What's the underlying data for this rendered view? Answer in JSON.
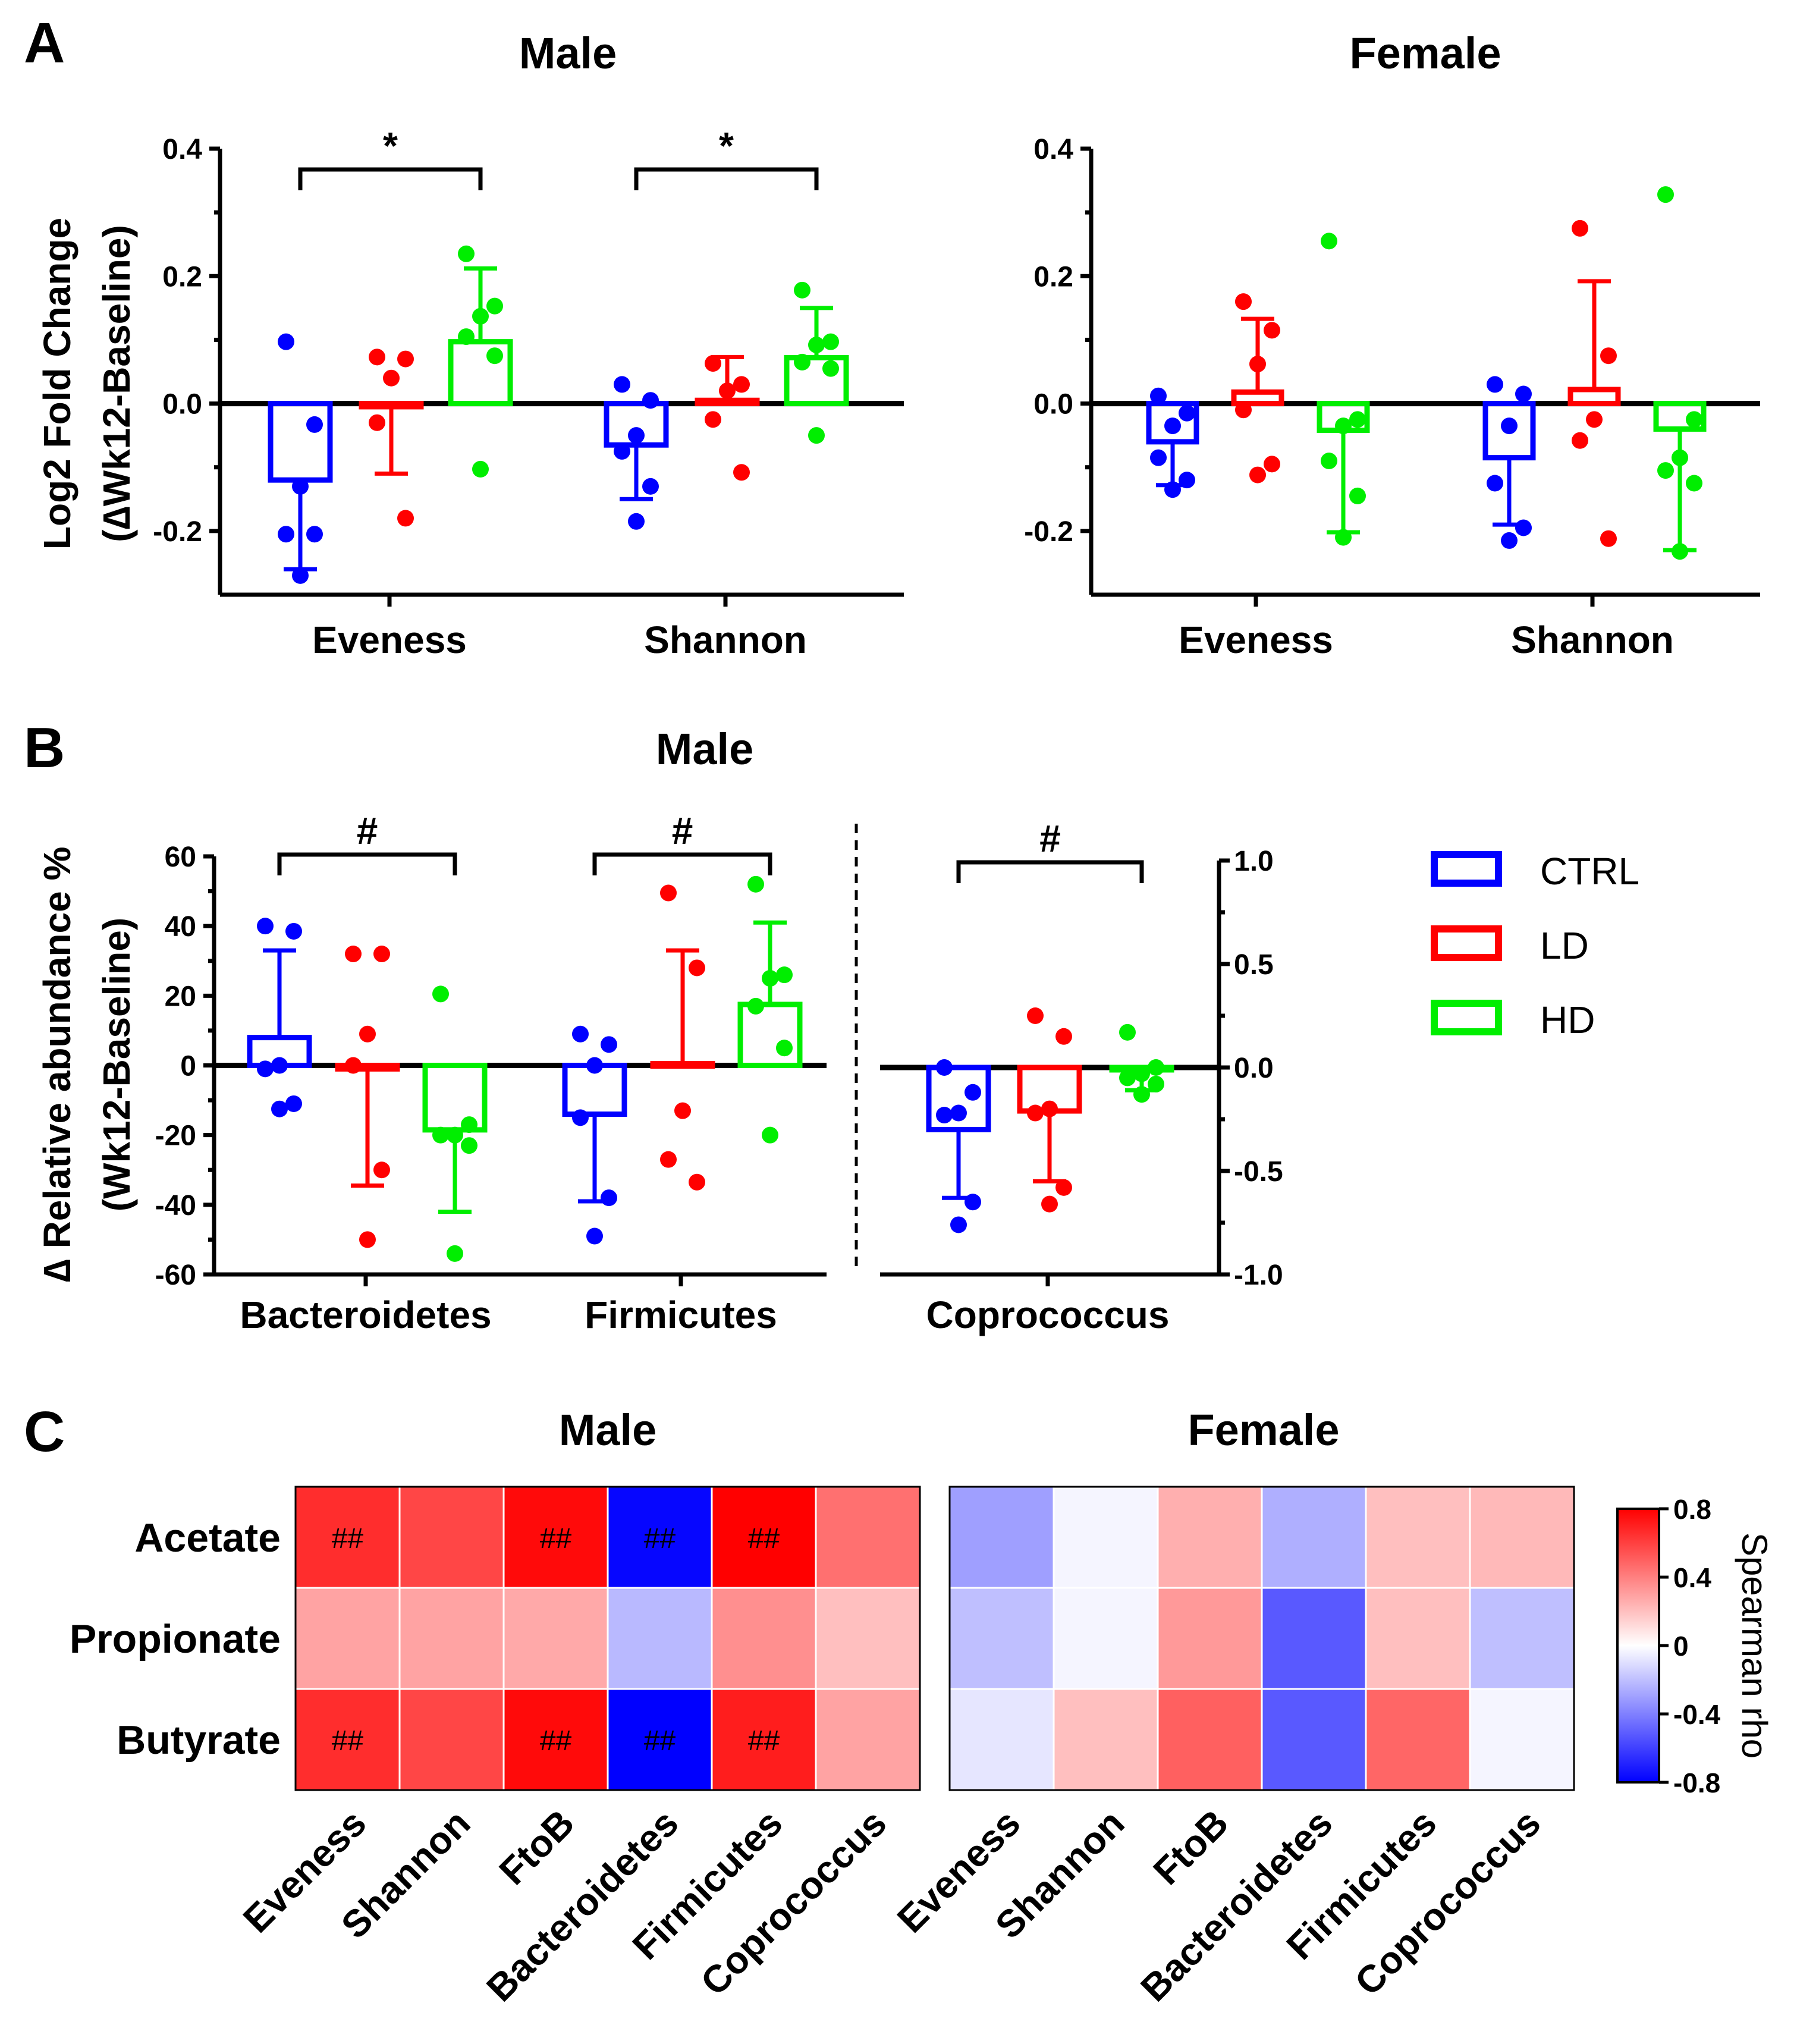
{
  "colors": {
    "CTRL": "#0000ff",
    "LD": "#ff0000",
    "HD": "#00ee00"
  },
  "panel_letters": {
    "a": "A",
    "b": "B",
    "c": "C"
  },
  "legend": {
    "items": [
      "CTRL",
      "LD",
      "HD"
    ]
  },
  "chart_data": [
    {
      "id": "A-male",
      "type": "bar",
      "title": "Male",
      "ylabel_line1": "Log2 Fold Change",
      "ylabel_line2": "(∆Wk12-Baseline)",
      "ylim": [
        -0.3,
        0.4
      ],
      "yticks": [
        0.4,
        0.2,
        0.0,
        -0.2
      ],
      "ytick_labels": [
        "0.4",
        "0.2",
        "0.0",
        "-0.2"
      ],
      "categories": [
        "Eveness",
        "Shannon"
      ],
      "series": [
        {
          "name": "CTRL",
          "means": [
            -0.12,
            -0.065
          ],
          "sd": [
            0.14,
            0.085
          ],
          "points": [
            [
              0.097,
              -0.033,
              -0.13,
              -0.205,
              -0.205,
              -0.27
            ],
            [
              0.03,
              0.005,
              -0.05,
              -0.075,
              -0.13,
              -0.185
            ]
          ]
        },
        {
          "name": "LD",
          "means": [
            -0.005,
            0.005
          ],
          "sd": [
            0.105,
            0.068
          ],
          "points": [
            [
              0.073,
              0.07,
              0.04,
              -0.03,
              -0.18
            ],
            [
              0.063,
              0.03,
              0.02,
              -0.025,
              -0.108
            ]
          ]
        },
        {
          "name": "HD",
          "means": [
            0.097,
            0.072
          ],
          "sd": [
            0.115,
            0.078
          ],
          "points": [
            [
              0.235,
              0.153,
              0.137,
              0.105,
              0.075,
              -0.103
            ],
            [
              0.178,
              0.097,
              0.092,
              0.065,
              0.055,
              -0.05
            ]
          ]
        }
      ],
      "significance": [
        {
          "category": 0,
          "from": "CTRL",
          "to": "HD",
          "label": "*"
        },
        {
          "category": 1,
          "from": "CTRL",
          "to": "HD",
          "label": "*"
        }
      ]
    },
    {
      "id": "A-female",
      "type": "bar",
      "title": "Female",
      "ylim": [
        -0.3,
        0.4
      ],
      "yticks": [
        0.4,
        0.2,
        0.0,
        -0.2
      ],
      "ytick_labels": [
        "0.4",
        "0.2",
        "0.0",
        "-0.2"
      ],
      "categories": [
        "Eveness",
        "Shannon"
      ],
      "series": [
        {
          "name": "CTRL",
          "means": [
            -0.06,
            -0.085
          ],
          "sd": [
            0.068,
            0.105
          ],
          "points": [
            [
              0.012,
              -0.015,
              -0.035,
              -0.085,
              -0.12,
              -0.135
            ],
            [
              0.03,
              0.015,
              -0.035,
              -0.125,
              -0.195,
              -0.215
            ]
          ]
        },
        {
          "name": "LD",
          "means": [
            0.018,
            0.022
          ],
          "sd": [
            0.115,
            0.17
          ],
          "points": [
            [
              0.16,
              0.115,
              0.062,
              -0.01,
              -0.095,
              -0.112
            ],
            [
              0.275,
              0.075,
              -0.025,
              -0.058,
              -0.212
            ]
          ]
        },
        {
          "name": "HD",
          "means": [
            -0.042,
            -0.04
          ],
          "sd": [
            0.16,
            0.19
          ],
          "points": [
            [
              0.255,
              -0.025,
              -0.035,
              -0.09,
              -0.145,
              -0.21
            ],
            [
              0.328,
              -0.025,
              -0.085,
              -0.105,
              -0.125,
              -0.232
            ]
          ]
        }
      ],
      "significance": []
    },
    {
      "id": "B-male-phyla",
      "type": "bar",
      "title": "Male",
      "ylabel_line1": "∆ Relative abundance %",
      "ylabel_line2": "(Wk12-Baseline)",
      "ylim": [
        -60,
        60
      ],
      "yticks": [
        60,
        40,
        20,
        0,
        -20,
        -40,
        -60
      ],
      "ytick_labels": [
        "60",
        "40",
        "20",
        "0",
        "-20",
        "-40",
        "-60"
      ],
      "categories": [
        "Bacteroidetes",
        "Firmicutes"
      ],
      "series": [
        {
          "name": "CTRL",
          "means": [
            8,
            -14
          ],
          "sd": [
            25,
            25
          ],
          "points": [
            [
              40,
              38.5,
              0,
              -1,
              -11,
              -12.5
            ],
            [
              9,
              6,
              0,
              -15,
              -38,
              -49
            ]
          ]
        },
        {
          "name": "LD",
          "means": [
            -1,
            0.5
          ],
          "sd": [
            33.5,
            32.5
          ],
          "points": [
            [
              32,
              32,
              9,
              0,
              -30,
              -50
            ],
            [
              49.5,
              28,
              -13,
              -27,
              -33.5
            ]
          ]
        },
        {
          "name": "HD",
          "means": [
            -18.5,
            17.5
          ],
          "sd": [
            23.5,
            23.5
          ],
          "points": [
            [
              20.5,
              -17,
              -20,
              -20,
              -23,
              -54
            ],
            [
              52,
              26,
              25,
              17,
              5,
              -20
            ]
          ]
        }
      ],
      "significance": [
        {
          "category": 0,
          "from": "CTRL",
          "to": "HD",
          "label": "#"
        },
        {
          "category": 1,
          "from": "CTRL",
          "to": "HD",
          "label": "#"
        }
      ]
    },
    {
      "id": "B-male-genus",
      "type": "bar",
      "ylim": [
        -1.0,
        1.0
      ],
      "yticks": [
        1.0,
        0.5,
        0.0,
        -0.5,
        -1.0
      ],
      "ytick_labels": [
        "1.0",
        "0.5",
        "0.0",
        "-0.5",
        "-1.0"
      ],
      "categories": [
        "Coprococcus"
      ],
      "series": [
        {
          "name": "CTRL",
          "means": [
            -0.3
          ],
          "sd": [
            0.33
          ],
          "points": [
            [
              0.0,
              -0.12,
              -0.22,
              -0.23,
              -0.65,
              -0.76
            ]
          ]
        },
        {
          "name": "LD",
          "means": [
            -0.21
          ],
          "sd": [
            0.34
          ],
          "points": [
            [
              0.25,
              0.15,
              -0.2,
              -0.22,
              -0.58,
              -0.66
            ]
          ]
        },
        {
          "name": "HD",
          "means": [
            -0.01
          ],
          "sd": [
            0.1
          ],
          "points": [
            [
              0.17,
              0.0,
              -0.03,
              -0.05,
              -0.08,
              -0.13
            ]
          ]
        }
      ],
      "significance": [
        {
          "category": 0,
          "from": "CTRL",
          "to": "HD",
          "label": "#"
        }
      ]
    },
    {
      "id": "C-heatmaps",
      "type": "heatmap",
      "colorbar_label": "Spearman rho",
      "colorbar_ticks": [
        0.8,
        0.4,
        0,
        -0.4,
        -0.8
      ],
      "colorbar_tick_labels": [
        "0.8",
        "0.4",
        "0",
        "-0.4",
        "-0.8"
      ],
      "vmin": -0.8,
      "vmax": 0.8,
      "rows": [
        "Acetate",
        "Propionate",
        "Butyrate"
      ],
      "cols": [
        "Eveness",
        "Shannon",
        "FtoB",
        "Bacteroidetes",
        "Firmicutes",
        "Coprococcus"
      ],
      "male": {
        "title": "Male",
        "values": [
          [
            0.66,
            0.58,
            0.77,
            -0.78,
            0.8,
            0.45
          ],
          [
            0.29,
            0.29,
            0.27,
            -0.22,
            0.35,
            0.2
          ],
          [
            0.66,
            0.58,
            0.77,
            -0.85,
            0.71,
            0.29
          ]
        ],
        "marks": [
          [
            "##",
            "",
            "##",
            "##",
            "##",
            ""
          ],
          [
            "",
            "",
            "",
            "",
            "",
            ""
          ],
          [
            "##",
            "",
            "##",
            "##",
            "##",
            ""
          ]
        ]
      },
      "female": {
        "title": "Female",
        "values": [
          [
            -0.3,
            -0.03,
            0.25,
            -0.25,
            0.2,
            0.22
          ],
          [
            -0.2,
            -0.03,
            0.32,
            -0.52,
            0.2,
            -0.2
          ],
          [
            -0.08,
            0.2,
            0.5,
            -0.52,
            0.48,
            -0.03
          ]
        ],
        "marks": [
          [
            "",
            "",
            "",
            "",
            "",
            ""
          ],
          [
            "",
            "",
            "",
            "",
            "",
            ""
          ],
          [
            "",
            "",
            "",
            "",
            "",
            ""
          ]
        ]
      }
    }
  ]
}
